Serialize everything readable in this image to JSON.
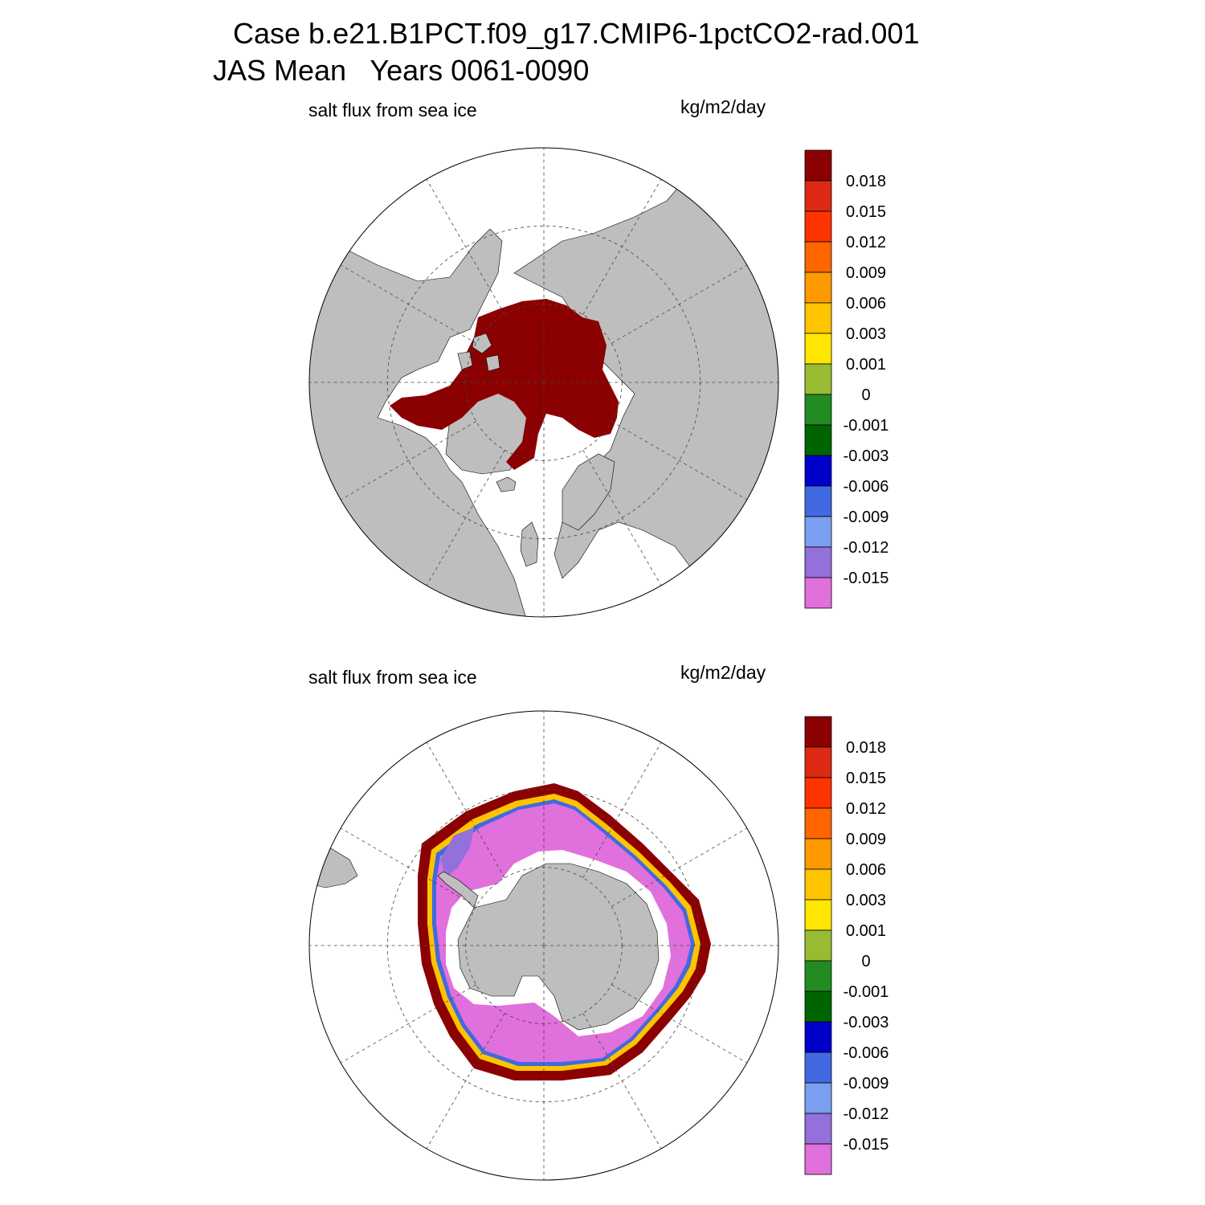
{
  "title": {
    "line1": "Case b.e21.B1PCT.f09_g17.CMIP6-1pctCO2-rad.001",
    "line2": "JAS Mean   Years 0061-0090"
  },
  "panels": [
    {
      "id": "north",
      "variable": "salt flux from sea ice",
      "units": "kg/m2/day",
      "hemisphere": "northern"
    },
    {
      "id": "south",
      "variable": "salt flux from sea ice",
      "units": "kg/m2/day",
      "hemisphere": "southern"
    }
  ],
  "colorbar": {
    "levels": [
      "0.018",
      "0.015",
      "0.012",
      "0.009",
      "0.006",
      "0.003",
      "0.001",
      "0",
      "-0.001",
      "-0.003",
      "-0.006",
      "-0.009",
      "-0.012",
      "-0.015"
    ],
    "colors": [
      "#8b0000",
      "#dc2a14",
      "#ff3300",
      "#ff6600",
      "#ff9900",
      "#ffc400",
      "#ffe600",
      "#99bb33",
      "#228b22",
      "#006400",
      "#0000cd",
      "#4169e1",
      "#7b9ef0",
      "#9370db",
      "#e070dc"
    ]
  },
  "map_colors": {
    "land": "#bebebe",
    "positive_max": "#8b0000",
    "negative_min": "#e070dc",
    "ocean": "#ffffff"
  }
}
